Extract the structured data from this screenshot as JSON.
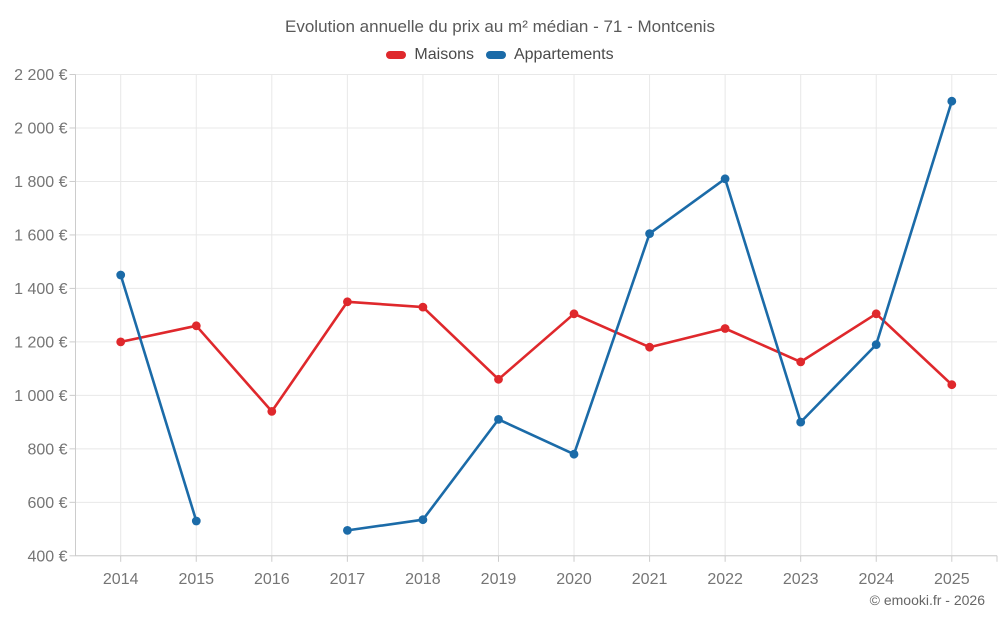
{
  "copyright": "© emooki.fr - 2026",
  "colors": {
    "maisons": "#df282c",
    "appartements": "#1b6ba8",
    "grid": "#e8e8e8",
    "axis": "#cccccc",
    "tick_text": "#757575",
    "title_text": "#595959",
    "legend_text": "#4a4a4a",
    "copyright_text": "#666666"
  },
  "chart_data": {
    "type": "line",
    "title": "Evolution annuelle du prix au m² médian - 71 - Montcenis",
    "categories": [
      "2014",
      "2015",
      "2016",
      "2017",
      "2018",
      "2019",
      "2020",
      "2021",
      "2022",
      "2023",
      "2024",
      "2025"
    ],
    "series": [
      {
        "name": "Maisons",
        "color": "#df282c",
        "values": [
          1200,
          1260,
          940,
          1350,
          1330,
          1060,
          1305,
          1180,
          1250,
          1125,
          1305,
          1040
        ]
      },
      {
        "name": "Appartements",
        "color": "#1b6ba8",
        "values": [
          1450,
          530,
          null,
          495,
          535,
          910,
          780,
          1605,
          1810,
          900,
          1190,
          2100
        ]
      }
    ],
    "ylim": [
      400,
      2200
    ],
    "ytick_step": 200,
    "yticks": [
      400,
      600,
      800,
      1000,
      1200,
      1400,
      1600,
      1800,
      2000,
      2200
    ],
    "ytick_labels": [
      "400 €",
      "600 €",
      "800 €",
      "1 000 €",
      "1 200 €",
      "1 400 €",
      "1 600 €",
      "1 800 €",
      "2 000 €",
      "2 200 €"
    ],
    "unit": "€",
    "grid": true,
    "legend_position": "top"
  }
}
